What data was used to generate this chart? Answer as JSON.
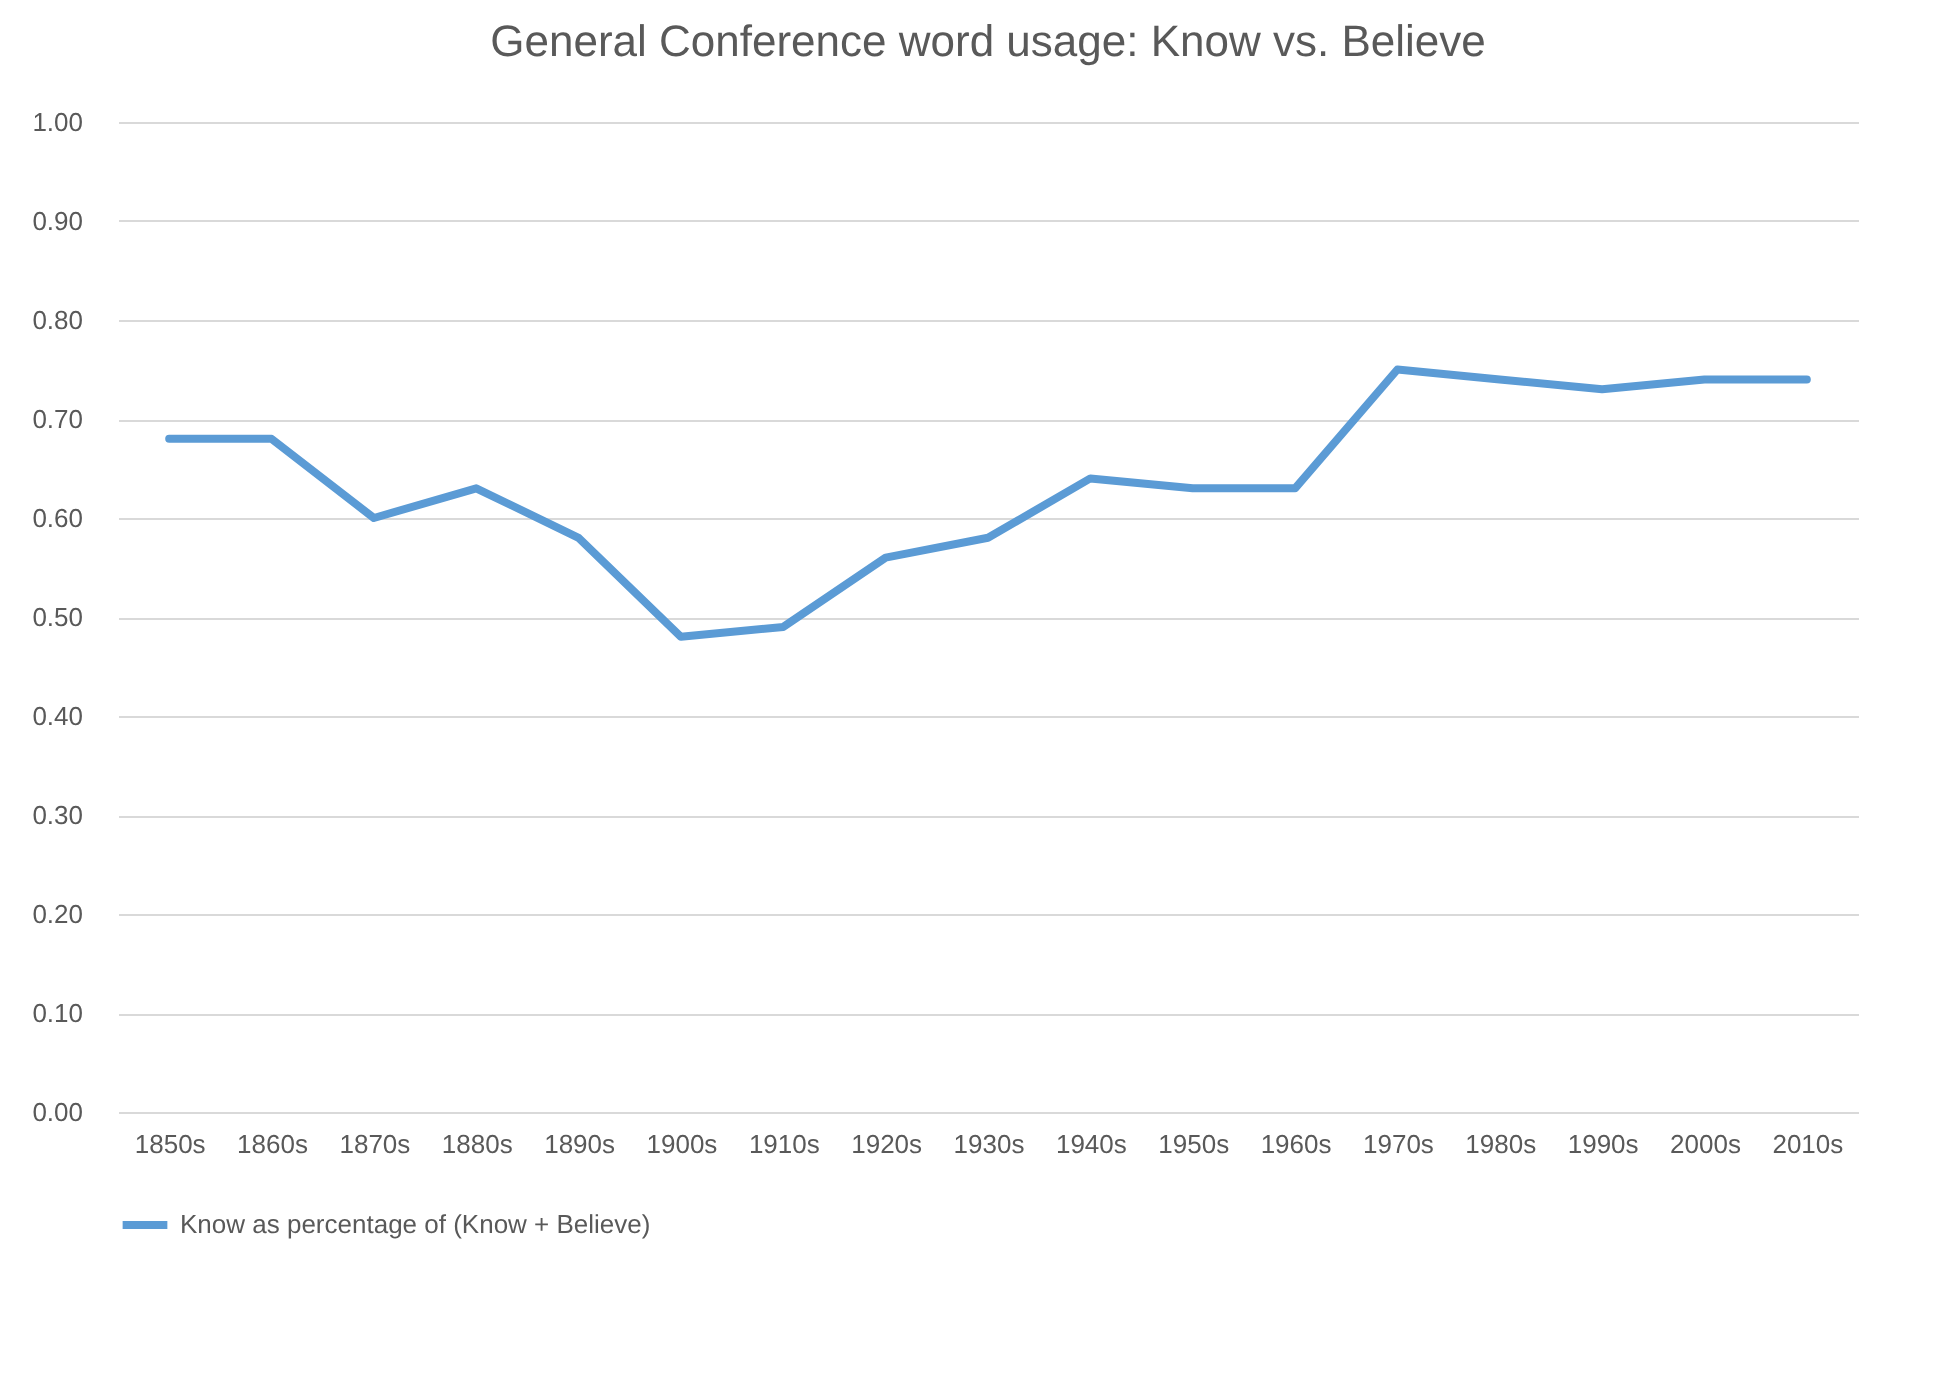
{
  "chart_data": {
    "type": "line",
    "title": "General Conference word usage:  Know vs. Believe",
    "categories": [
      "1850s",
      "1860s",
      "1870s",
      "1880s",
      "1890s",
      "1900s",
      "1910s",
      "1920s",
      "1930s",
      "1940s",
      "1950s",
      "1960s",
      "1970s",
      "1980s",
      "1990s",
      "2000s",
      "2010s"
    ],
    "series": [
      {
        "name": "Know as percentage of (Know + Believe)",
        "color": "#5b9bd5",
        "values": [
          0.68,
          0.68,
          0.6,
          0.63,
          0.58,
          0.48,
          0.49,
          0.56,
          0.58,
          0.64,
          0.63,
          0.63,
          0.75,
          0.74,
          0.73,
          0.74,
          0.74
        ]
      }
    ],
    "ylim": [
      0,
      1
    ],
    "yticks": [
      {
        "value": 0,
        "label": "0.00"
      },
      {
        "value": 0.1,
        "label": "0.10"
      },
      {
        "value": 0.2,
        "label": "0.20"
      },
      {
        "value": 0.3,
        "label": "0.30"
      },
      {
        "value": 0.4,
        "label": "0.40"
      },
      {
        "value": 0.5,
        "label": "0.50"
      },
      {
        "value": 0.6,
        "label": "0.60"
      },
      {
        "value": 0.7,
        "label": "0.70"
      },
      {
        "value": 0.8,
        "label": "0.80"
      },
      {
        "value": 0.9,
        "label": "0.90"
      },
      {
        "value": 1,
        "label": "1.00"
      }
    ],
    "grid": "y",
    "legend": "bottom",
    "marker": "none",
    "line_style": "solid"
  }
}
